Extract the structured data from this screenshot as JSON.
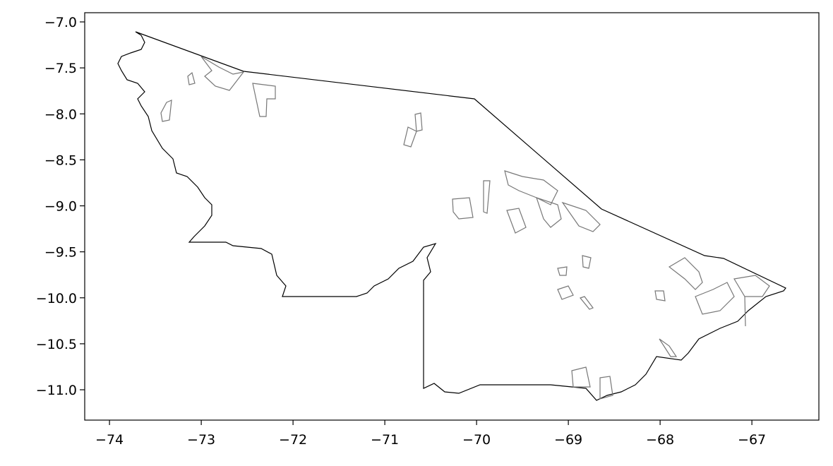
{
  "chart_data": {
    "type": "map",
    "xlim": [
      -74.27,
      -66.27
    ],
    "ylim": [
      -11.33,
      -6.9
    ],
    "xticks": [
      {
        "value": -74,
        "label": "−74"
      },
      {
        "value": -73,
        "label": "−73"
      },
      {
        "value": -72,
        "label": "−72"
      },
      {
        "value": -71,
        "label": "−71"
      },
      {
        "value": -70,
        "label": "−70"
      },
      {
        "value": -69,
        "label": "−69"
      },
      {
        "value": -68,
        "label": "−68"
      },
      {
        "value": -67,
        "label": "−67"
      }
    ],
    "yticks": [
      {
        "value": -7,
        "label": "−7.0"
      },
      {
        "value": -7.5,
        "label": "−7.5"
      },
      {
        "value": -8,
        "label": "−8.0"
      },
      {
        "value": -8.5,
        "label": "−8.5"
      },
      {
        "value": -9,
        "label": "−9.0"
      },
      {
        "value": -9.5,
        "label": "−9.5"
      },
      {
        "value": -10,
        "label": "−10.0"
      },
      {
        "value": -10.5,
        "label": "−10.5"
      },
      {
        "value": -11,
        "label": "−11.0"
      }
    ]
  }
}
